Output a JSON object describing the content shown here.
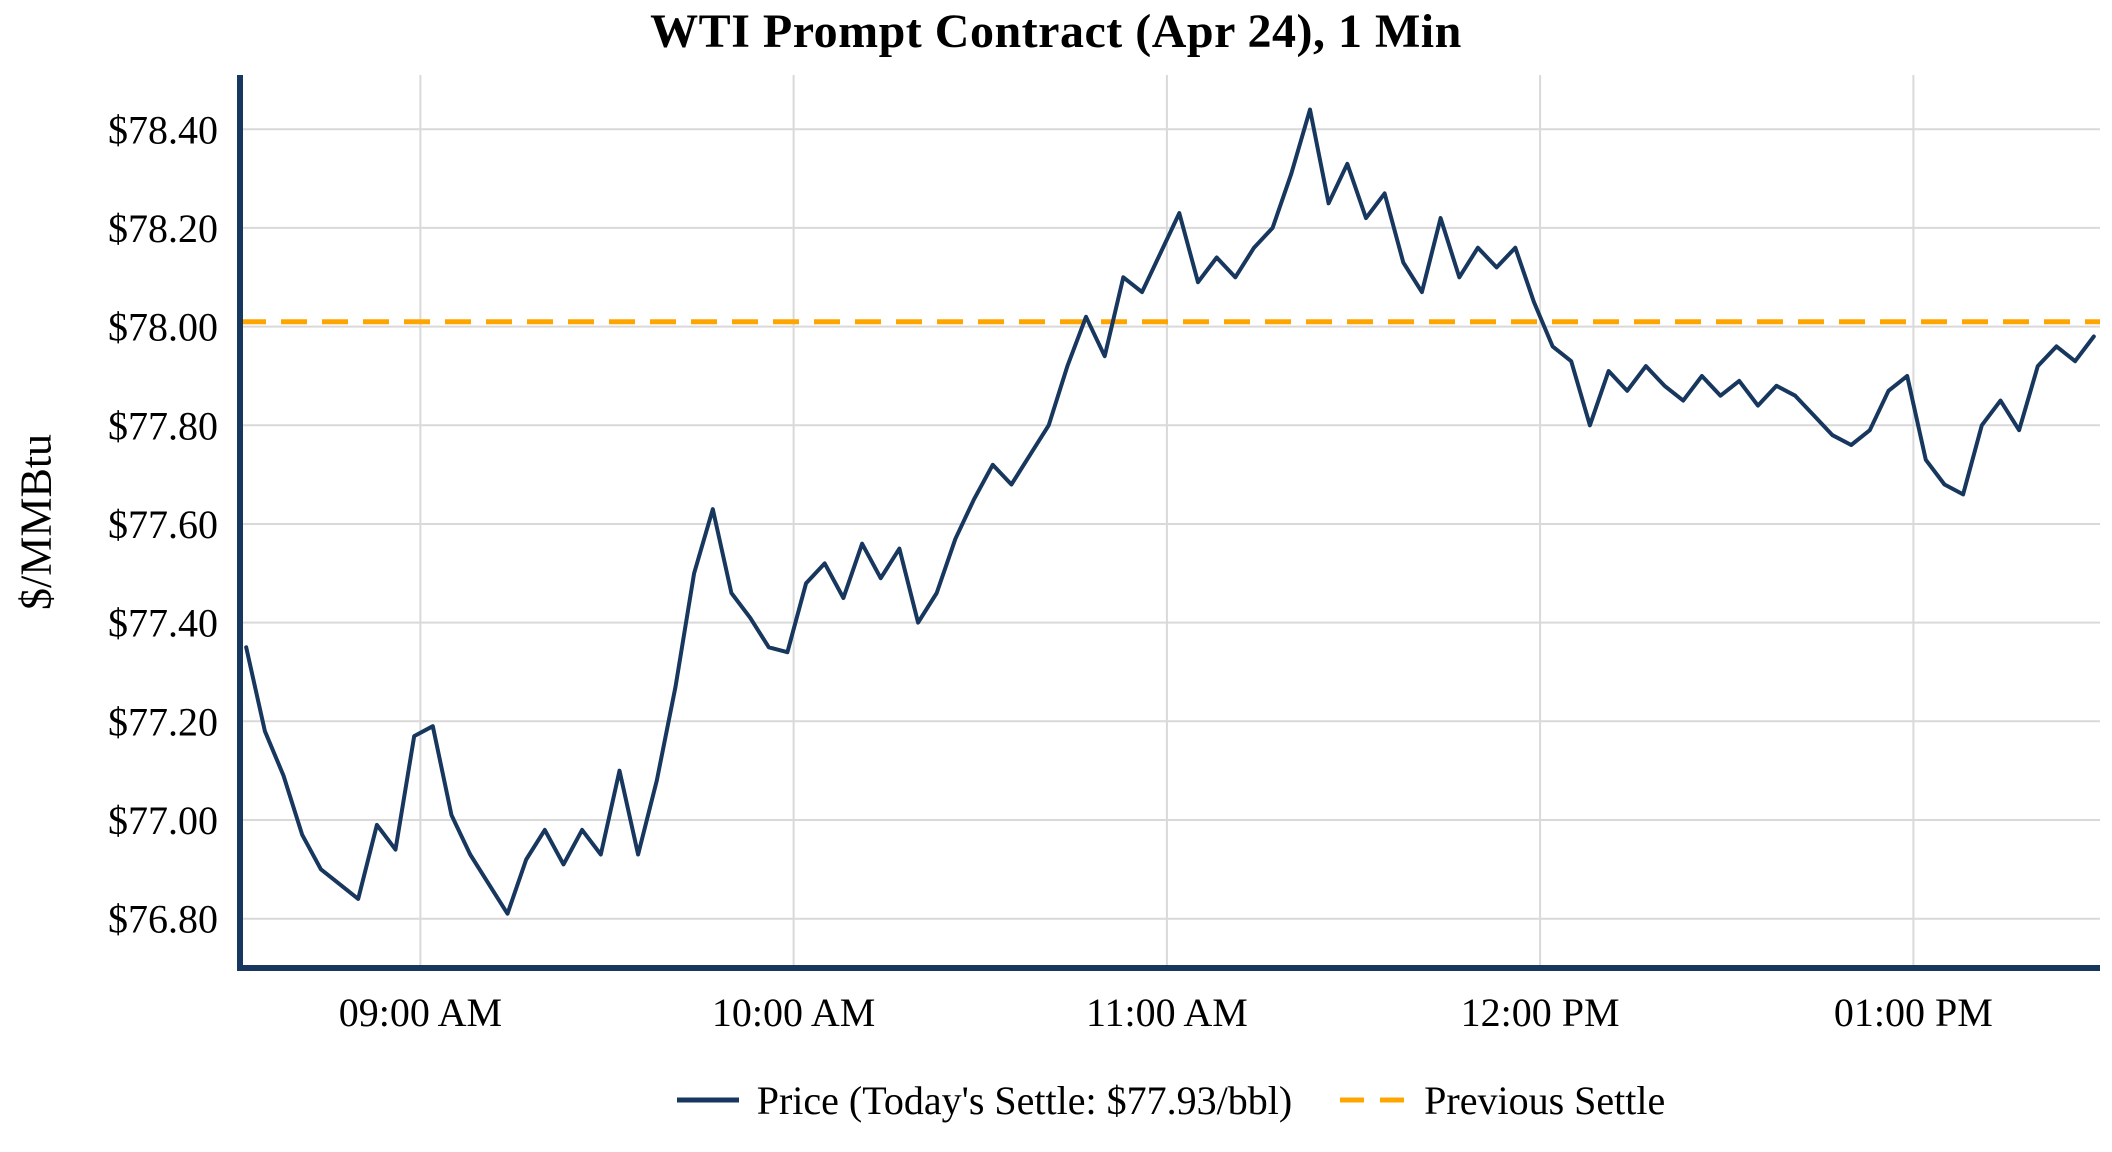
{
  "colors": {
    "price_line": "#17375e",
    "prev_settle_line": "#ffa500",
    "grid": "#d9d9d9",
    "axis": "#17375e",
    "text": "#000000",
    "background": "#ffffff"
  },
  "chart_data": {
    "type": "line",
    "title": "WTI Prompt Contract (Apr 24), 1 Min",
    "xlabel": "",
    "ylabel": "$/MMBtu",
    "ylim": [
      76.7,
      78.51
    ],
    "x_domain": [
      "08:31",
      "13:30"
    ],
    "grid": true,
    "legend_position": "bottom",
    "today_settle": 77.93,
    "previous_settle": 78.01,
    "x_ticks": [
      {
        "time": "09:00",
        "label": "09:00 AM"
      },
      {
        "time": "10:00",
        "label": "10:00 AM"
      },
      {
        "time": "11:00",
        "label": "11:00 AM"
      },
      {
        "time": "12:00",
        "label": "12:00 PM"
      },
      {
        "time": "13:00",
        "label": "01:00 PM"
      }
    ],
    "y_ticks": [
      {
        "value": 76.8,
        "label": "$76.80"
      },
      {
        "value": 77.0,
        "label": "$77.00"
      },
      {
        "value": 77.2,
        "label": "$77.20"
      },
      {
        "value": 77.4,
        "label": "$77.40"
      },
      {
        "value": 77.6,
        "label": "$77.60"
      },
      {
        "value": 77.8,
        "label": "$77.80"
      },
      {
        "value": 78.0,
        "label": "$78.00"
      },
      {
        "value": 78.2,
        "label": "$78.20"
      },
      {
        "value": 78.4,
        "label": "$78.40"
      }
    ],
    "legend": {
      "price_label": "Price (Today's Settle: $77.93/bbl)",
      "prev_settle_label": "Previous Settle"
    },
    "series": [
      {
        "name": "Price (Today's Settle: $77.93/bbl)",
        "style": "solid",
        "color": "#17375e",
        "points": [
          [
            "08:32",
            77.35
          ],
          [
            "08:35",
            77.18
          ],
          [
            "08:38",
            77.09
          ],
          [
            "08:41",
            76.97
          ],
          [
            "08:44",
            76.9
          ],
          [
            "08:47",
            76.87
          ],
          [
            "08:50",
            76.84
          ],
          [
            "08:53",
            76.99
          ],
          [
            "08:56",
            76.94
          ],
          [
            "08:59",
            77.17
          ],
          [
            "09:02",
            77.19
          ],
          [
            "09:05",
            77.01
          ],
          [
            "09:08",
            76.93
          ],
          [
            "09:11",
            76.87
          ],
          [
            "09:14",
            76.81
          ],
          [
            "09:17",
            76.92
          ],
          [
            "09:20",
            76.98
          ],
          [
            "09:23",
            76.91
          ],
          [
            "09:26",
            76.98
          ],
          [
            "09:29",
            76.93
          ],
          [
            "09:32",
            77.1
          ],
          [
            "09:35",
            76.93
          ],
          [
            "09:38",
            77.08
          ],
          [
            "09:41",
            77.27
          ],
          [
            "09:44",
            77.5
          ],
          [
            "09:47",
            77.63
          ],
          [
            "09:50",
            77.46
          ],
          [
            "09:53",
            77.41
          ],
          [
            "09:56",
            77.35
          ],
          [
            "09:59",
            77.34
          ],
          [
            "10:02",
            77.48
          ],
          [
            "10:05",
            77.52
          ],
          [
            "10:08",
            77.45
          ],
          [
            "10:11",
            77.56
          ],
          [
            "10:14",
            77.49
          ],
          [
            "10:17",
            77.55
          ],
          [
            "10:20",
            77.4
          ],
          [
            "10:23",
            77.46
          ],
          [
            "10:26",
            77.57
          ],
          [
            "10:29",
            77.65
          ],
          [
            "10:32",
            77.72
          ],
          [
            "10:35",
            77.68
          ],
          [
            "10:38",
            77.74
          ],
          [
            "10:41",
            77.8
          ],
          [
            "10:44",
            77.92
          ],
          [
            "10:47",
            78.02
          ],
          [
            "10:50",
            77.94
          ],
          [
            "10:53",
            78.1
          ],
          [
            "10:56",
            78.07
          ],
          [
            "10:59",
            78.15
          ],
          [
            "11:02",
            78.23
          ],
          [
            "11:05",
            78.09
          ],
          [
            "11:08",
            78.14
          ],
          [
            "11:11",
            78.1
          ],
          [
            "11:14",
            78.16
          ],
          [
            "11:17",
            78.2
          ],
          [
            "11:20",
            78.31
          ],
          [
            "11:23",
            78.44
          ],
          [
            "11:26",
            78.25
          ],
          [
            "11:29",
            78.33
          ],
          [
            "11:32",
            78.22
          ],
          [
            "11:35",
            78.27
          ],
          [
            "11:38",
            78.13
          ],
          [
            "11:41",
            78.07
          ],
          [
            "11:44",
            78.22
          ],
          [
            "11:47",
            78.1
          ],
          [
            "11:50",
            78.16
          ],
          [
            "11:53",
            78.12
          ],
          [
            "11:56",
            78.16
          ],
          [
            "11:59",
            78.05
          ],
          [
            "12:02",
            77.96
          ],
          [
            "12:05",
            77.93
          ],
          [
            "12:08",
            77.8
          ],
          [
            "12:11",
            77.91
          ],
          [
            "12:14",
            77.87
          ],
          [
            "12:17",
            77.92
          ],
          [
            "12:20",
            77.88
          ],
          [
            "12:23",
            77.85
          ],
          [
            "12:26",
            77.9
          ],
          [
            "12:29",
            77.86
          ],
          [
            "12:32",
            77.89
          ],
          [
            "12:35",
            77.84
          ],
          [
            "12:38",
            77.88
          ],
          [
            "12:41",
            77.86
          ],
          [
            "12:44",
            77.82
          ],
          [
            "12:47",
            77.78
          ],
          [
            "12:50",
            77.76
          ],
          [
            "12:53",
            77.79
          ],
          [
            "12:56",
            77.87
          ],
          [
            "12:59",
            77.9
          ],
          [
            "13:02",
            77.73
          ],
          [
            "13:05",
            77.68
          ],
          [
            "13:08",
            77.66
          ],
          [
            "13:11",
            77.8
          ],
          [
            "13:14",
            77.85
          ],
          [
            "13:17",
            77.79
          ],
          [
            "13:20",
            77.92
          ],
          [
            "13:23",
            77.96
          ],
          [
            "13:26",
            77.93
          ],
          [
            "13:29",
            77.98
          ]
        ]
      },
      {
        "name": "Previous Settle",
        "style": "dashed",
        "color": "#ffa500",
        "value": 78.01
      }
    ]
  }
}
